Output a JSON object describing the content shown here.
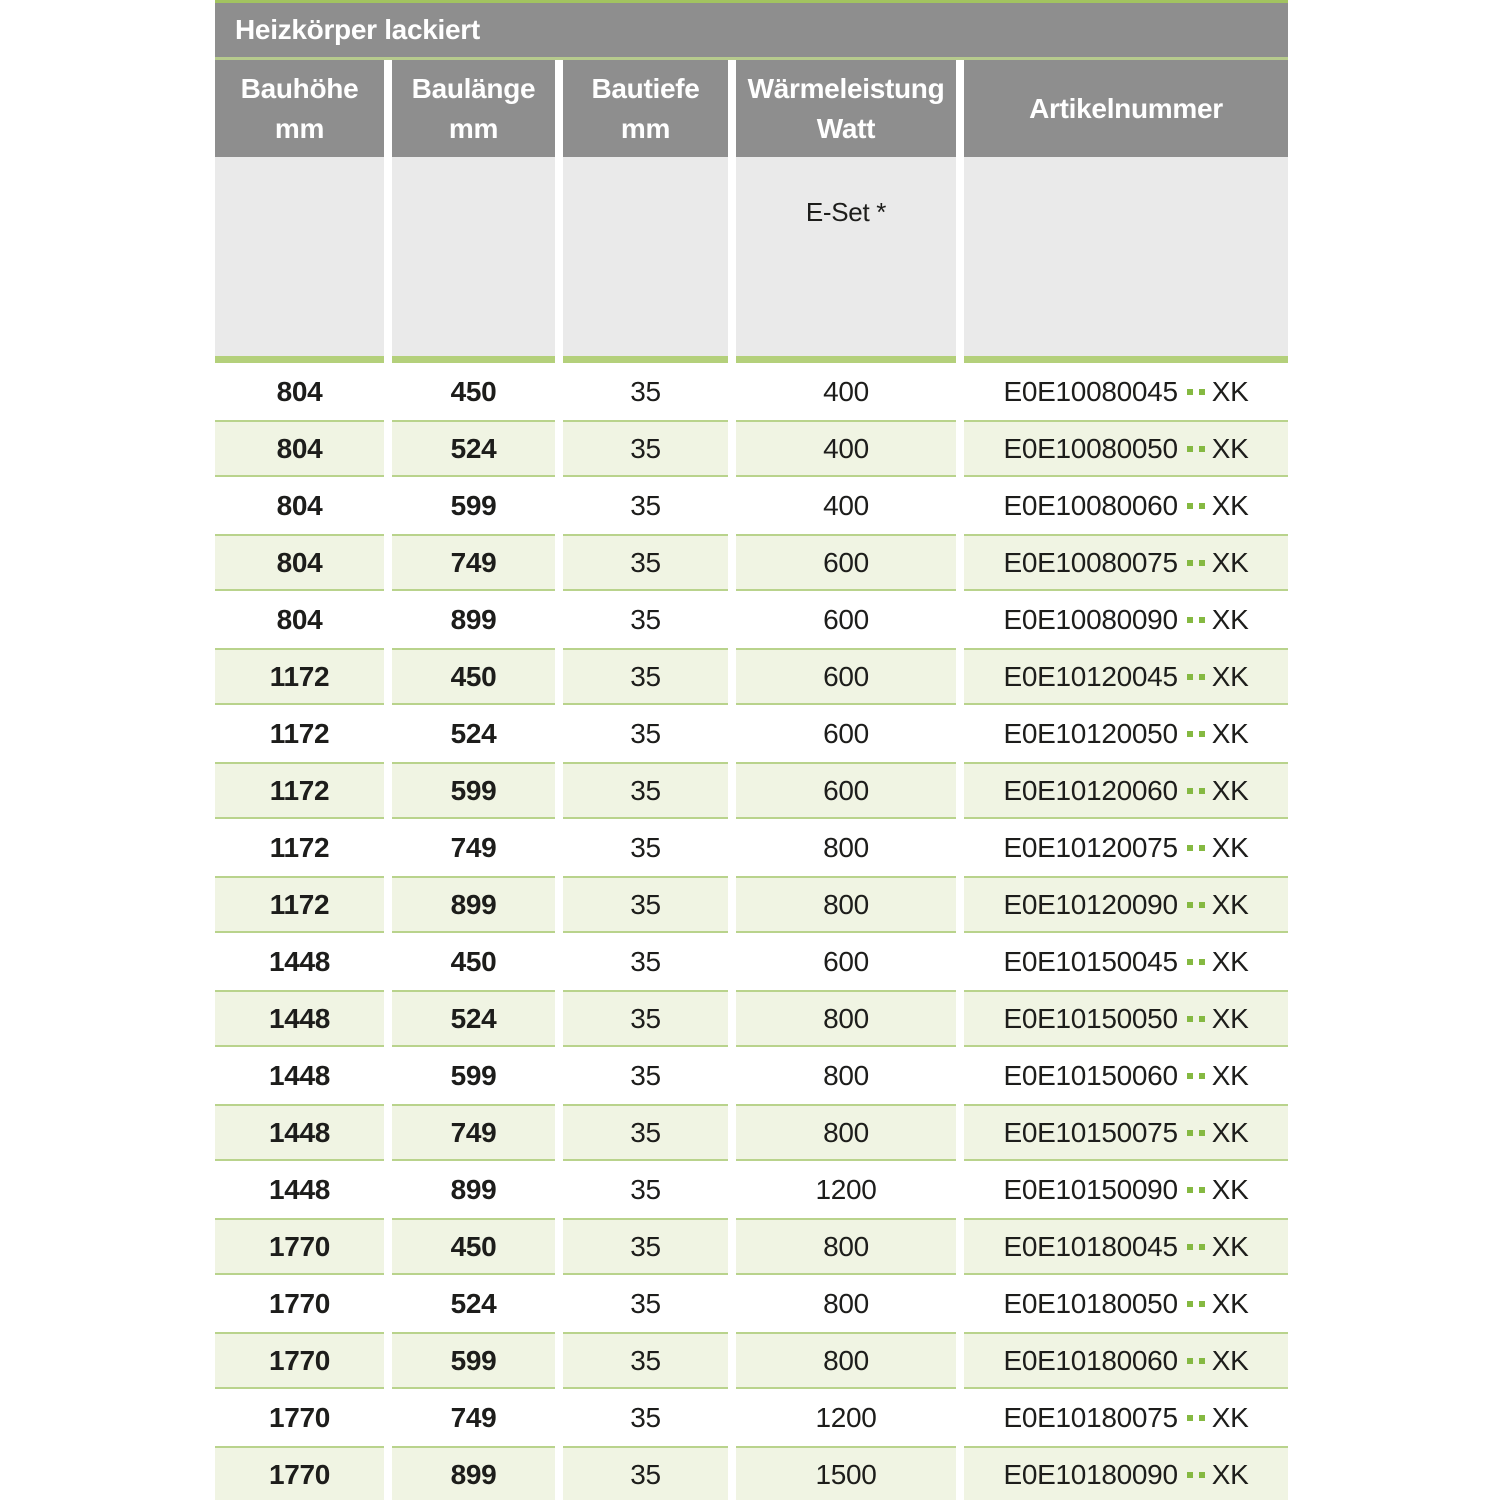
{
  "table": {
    "title": "Heizkörper lackiert",
    "columns": [
      {
        "id": "bauhoehe",
        "line1": "Bauhöhe",
        "line2": "mm"
      },
      {
        "id": "baulaenge",
        "line1": "Baulänge",
        "line2": "mm"
      },
      {
        "id": "bautiefe",
        "line1": "Bautiefe",
        "line2": "mm"
      },
      {
        "id": "waermeleistung",
        "line1": "Wärmeleistung",
        "line2": "Watt"
      },
      {
        "id": "artikelnummer",
        "line1": "Artikelnummer",
        "line2": ""
      }
    ],
    "subheader_note": "E-Set *",
    "rows": [
      {
        "bauhoehe": "804",
        "baulaenge": "450",
        "bautiefe": "35",
        "watt": "400",
        "artikel": "E0E10080045",
        "artikel_dots": "..",
        "artikel_suffix": "XK"
      },
      {
        "bauhoehe": "804",
        "baulaenge": "524",
        "bautiefe": "35",
        "watt": "400",
        "artikel": "E0E10080050",
        "artikel_dots": "..",
        "artikel_suffix": "XK"
      },
      {
        "bauhoehe": "804",
        "baulaenge": "599",
        "bautiefe": "35",
        "watt": "400",
        "artikel": "E0E10080060",
        "artikel_dots": "..",
        "artikel_suffix": "XK"
      },
      {
        "bauhoehe": "804",
        "baulaenge": "749",
        "bautiefe": "35",
        "watt": "600",
        "artikel": "E0E10080075",
        "artikel_dots": "..",
        "artikel_suffix": "XK"
      },
      {
        "bauhoehe": "804",
        "baulaenge": "899",
        "bautiefe": "35",
        "watt": "600",
        "artikel": "E0E10080090",
        "artikel_dots": "..",
        "artikel_suffix": "XK"
      },
      {
        "bauhoehe": "1172",
        "baulaenge": "450",
        "bautiefe": "35",
        "watt": "600",
        "artikel": "E0E10120045",
        "artikel_dots": "..",
        "artikel_suffix": "XK"
      },
      {
        "bauhoehe": "1172",
        "baulaenge": "524",
        "bautiefe": "35",
        "watt": "600",
        "artikel": "E0E10120050",
        "artikel_dots": "..",
        "artikel_suffix": "XK"
      },
      {
        "bauhoehe": "1172",
        "baulaenge": "599",
        "bautiefe": "35",
        "watt": "600",
        "artikel": "E0E10120060",
        "artikel_dots": "..",
        "artikel_suffix": "XK"
      },
      {
        "bauhoehe": "1172",
        "baulaenge": "749",
        "bautiefe": "35",
        "watt": "800",
        "artikel": "E0E10120075",
        "artikel_dots": "..",
        "artikel_suffix": "XK"
      },
      {
        "bauhoehe": "1172",
        "baulaenge": "899",
        "bautiefe": "35",
        "watt": "800",
        "artikel": "E0E10120090",
        "artikel_dots": "..",
        "artikel_suffix": "XK"
      },
      {
        "bauhoehe": "1448",
        "baulaenge": "450",
        "bautiefe": "35",
        "watt": "600",
        "artikel": "E0E10150045",
        "artikel_dots": "..",
        "artikel_suffix": "XK"
      },
      {
        "bauhoehe": "1448",
        "baulaenge": "524",
        "bautiefe": "35",
        "watt": "800",
        "artikel": "E0E10150050",
        "artikel_dots": "..",
        "artikel_suffix": "XK"
      },
      {
        "bauhoehe": "1448",
        "baulaenge": "599",
        "bautiefe": "35",
        "watt": "800",
        "artikel": "E0E10150060",
        "artikel_dots": "..",
        "artikel_suffix": "XK"
      },
      {
        "bauhoehe": "1448",
        "baulaenge": "749",
        "bautiefe": "35",
        "watt": "800",
        "artikel": "E0E10150075",
        "artikel_dots": "..",
        "artikel_suffix": "XK"
      },
      {
        "bauhoehe": "1448",
        "baulaenge": "899",
        "bautiefe": "35",
        "watt": "1200",
        "artikel": "E0E10150090",
        "artikel_dots": "..",
        "artikel_suffix": "XK"
      },
      {
        "bauhoehe": "1770",
        "baulaenge": "450",
        "bautiefe": "35",
        "watt": "800",
        "artikel": "E0E10180045",
        "artikel_dots": "..",
        "artikel_suffix": "XK"
      },
      {
        "bauhoehe": "1770",
        "baulaenge": "524",
        "bautiefe": "35",
        "watt": "800",
        "artikel": "E0E10180050",
        "artikel_dots": "..",
        "artikel_suffix": "XK"
      },
      {
        "bauhoehe": "1770",
        "baulaenge": "599",
        "bautiefe": "35",
        "watt": "800",
        "artikel": "E0E10180060",
        "artikel_dots": "..",
        "artikel_suffix": "XK"
      },
      {
        "bauhoehe": "1770",
        "baulaenge": "749",
        "bautiefe": "35",
        "watt": "1200",
        "artikel": "E0E10180075",
        "artikel_dots": "..",
        "artikel_suffix": "XK"
      },
      {
        "bauhoehe": "1770",
        "baulaenge": "899",
        "bautiefe": "35",
        "watt": "1500",
        "artikel": "E0E10180090",
        "artikel_dots": "..",
        "artikel_suffix": "XK"
      }
    ]
  },
  "colors": {
    "header_gray": "#8e8e8e",
    "header_text": "#ffffff",
    "top_line_green": "#a2c360",
    "divider_green": "#b6ca8d",
    "subheader_gray": "#eaeaea",
    "bar_green": "#b4d07b",
    "row_green_bg": "#f0f4e3",
    "row_green_border": "#b9d38c",
    "dot_green": "#85b941",
    "text_dark": "#1d1d1b"
  }
}
